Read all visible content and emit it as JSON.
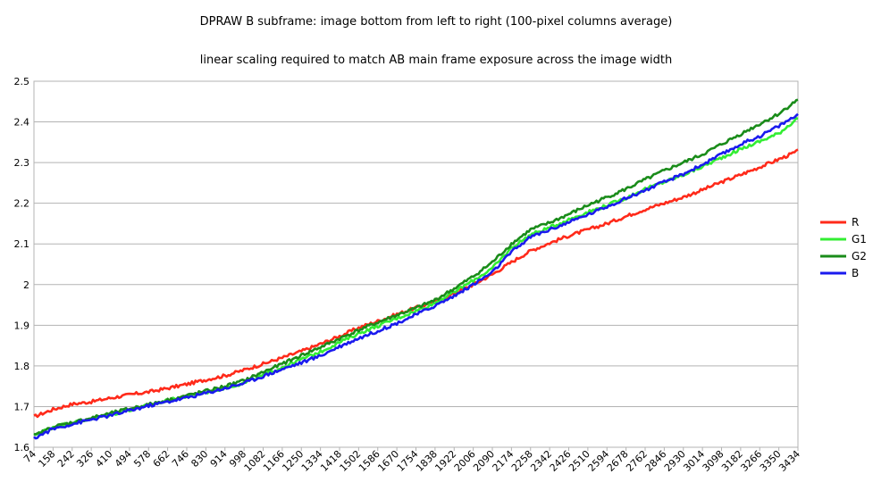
{
  "chart_data": {
    "type": "line",
    "title": "DPRAW B subframe: image bottom from left to right (100-pixel columns average)",
    "subtitle": "linear scaling required to match AB main frame exposure across the image width",
    "xlabel": "",
    "ylabel": "",
    "xlim": [
      74,
      3434
    ],
    "ylim": [
      1.6,
      2.5
    ],
    "y_ticks": [
      "1.6",
      "1.7",
      "1.8",
      "1.9",
      "2",
      "2.1",
      "2.2",
      "2.3",
      "2.4",
      "2.5"
    ],
    "x_ticks": [
      "74",
      "158",
      "242",
      "326",
      "410",
      "494",
      "578",
      "662",
      "746",
      "830",
      "914",
      "998",
      "1082",
      "1166",
      "1250",
      "1334",
      "1418",
      "1502",
      "1586",
      "1670",
      "1754",
      "1838",
      "1922",
      "2006",
      "2090",
      "2174",
      "2258",
      "2342",
      "2426",
      "2510",
      "2594",
      "2678",
      "2762",
      "2846",
      "2930",
      "3014",
      "3098",
      "3182",
      "3266",
      "3350",
      "3434"
    ],
    "grid": "horizontal",
    "legend": "right",
    "x": [
      74,
      158,
      242,
      326,
      410,
      494,
      578,
      662,
      746,
      830,
      914,
      998,
      1082,
      1166,
      1250,
      1334,
      1418,
      1502,
      1586,
      1670,
      1754,
      1838,
      1922,
      2006,
      2090,
      2174,
      2258,
      2342,
      2426,
      2510,
      2594,
      2678,
      2762,
      2846,
      2930,
      3014,
      3098,
      3182,
      3266,
      3350,
      3434
    ],
    "series": [
      {
        "name": "R",
        "color": "#ff2a1a",
        "values": [
          1.675,
          1.693,
          1.706,
          1.712,
          1.721,
          1.729,
          1.736,
          1.745,
          1.755,
          1.766,
          1.776,
          1.79,
          1.805,
          1.82,
          1.836,
          1.854,
          1.873,
          1.894,
          1.91,
          1.927,
          1.943,
          1.958,
          1.978,
          2.0,
          2.025,
          2.055,
          2.083,
          2.102,
          2.12,
          2.135,
          2.15,
          2.168,
          2.185,
          2.2,
          2.215,
          2.233,
          2.252,
          2.27,
          2.289,
          2.308,
          2.328
        ]
      },
      {
        "name": "G1",
        "color": "#33ee33",
        "values": [
          1.63,
          1.65,
          1.66,
          1.67,
          1.68,
          1.692,
          1.703,
          1.715,
          1.725,
          1.735,
          1.746,
          1.758,
          1.777,
          1.797,
          1.816,
          1.835,
          1.858,
          1.88,
          1.898,
          1.917,
          1.935,
          1.955,
          1.982,
          2.01,
          2.04,
          2.09,
          2.123,
          2.14,
          2.16,
          2.178,
          2.195,
          2.213,
          2.235,
          2.252,
          2.27,
          2.29,
          2.312,
          2.333,
          2.352,
          2.372,
          2.41
        ]
      },
      {
        "name": "G2",
        "color": "#1a8c1a",
        "values": [
          1.628,
          1.65,
          1.661,
          1.672,
          1.683,
          1.695,
          1.705,
          1.716,
          1.727,
          1.738,
          1.75,
          1.764,
          1.785,
          1.805,
          1.826,
          1.846,
          1.867,
          1.888,
          1.907,
          1.925,
          1.942,
          1.962,
          1.99,
          2.02,
          2.055,
          2.1,
          2.135,
          2.152,
          2.173,
          2.195,
          2.215,
          2.235,
          2.258,
          2.28,
          2.3,
          2.32,
          2.345,
          2.37,
          2.395,
          2.42,
          2.455
        ]
      },
      {
        "name": "B",
        "color": "#1a1aee",
        "values": [
          1.622,
          1.645,
          1.657,
          1.668,
          1.678,
          1.69,
          1.702,
          1.712,
          1.722,
          1.733,
          1.745,
          1.758,
          1.775,
          1.792,
          1.808,
          1.825,
          1.848,
          1.868,
          1.886,
          1.905,
          1.926,
          1.948,
          1.972,
          2.0,
          2.03,
          2.08,
          2.117,
          2.135,
          2.153,
          2.172,
          2.192,
          2.212,
          2.232,
          2.252,
          2.272,
          2.295,
          2.32,
          2.345,
          2.365,
          2.39,
          2.418
        ]
      }
    ]
  }
}
